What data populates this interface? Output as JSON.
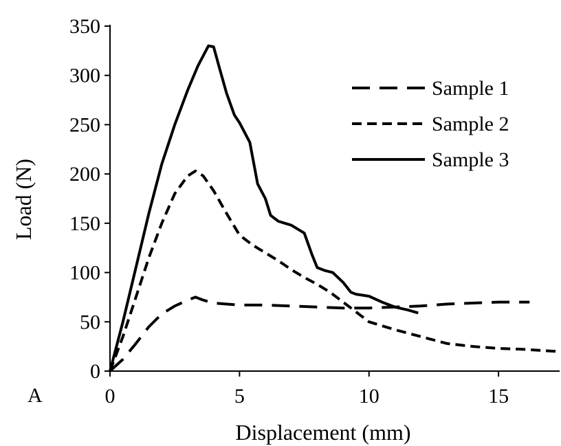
{
  "chart_data": {
    "type": "line",
    "panel_label": "A",
    "xlabel": "Displacement (mm)",
    "ylabel": "Load (N)",
    "xlim": [
      0,
      17.2
    ],
    "ylim": [
      0,
      350
    ],
    "xticks": [
      0,
      5,
      10,
      15
    ],
    "yticks": [
      0,
      50,
      100,
      150,
      200,
      250,
      300,
      350
    ],
    "grid": false,
    "legend_position": "top-right",
    "series": [
      {
        "name": "Sample 1",
        "style": "long-dash",
        "color": "#000000",
        "x": [
          0,
          0.5,
          1.0,
          1.5,
          2.0,
          2.5,
          3.0,
          3.3,
          3.6,
          4.0,
          5.0,
          6.0,
          7.0,
          8.0,
          9.0,
          10.0,
          11.0,
          12.0,
          13.0,
          14.0,
          15.0,
          16.2
        ],
        "y": [
          0,
          12,
          28,
          45,
          58,
          66,
          72,
          75,
          72,
          69,
          67,
          67,
          66,
          65,
          64,
          64,
          65,
          66,
          68,
          69,
          70,
          70
        ]
      },
      {
        "name": "Sample 2",
        "style": "short-dash",
        "color": "#000000",
        "x": [
          0,
          0.5,
          1.0,
          1.5,
          2.0,
          2.5,
          3.0,
          3.3,
          3.6,
          4.0,
          4.5,
          5.0,
          5.5,
          6.0,
          6.5,
          7.0,
          7.5,
          8.0,
          8.5,
          9.0,
          9.5,
          10.0,
          11.0,
          12.0,
          13.0,
          14.0,
          15.0,
          16.0,
          17.2
        ],
        "y": [
          0,
          35,
          75,
          115,
          150,
          180,
          198,
          203,
          198,
          183,
          160,
          138,
          128,
          120,
          112,
          103,
          95,
          88,
          80,
          70,
          60,
          50,
          42,
          35,
          28,
          25,
          23,
          22,
          20
        ]
      },
      {
        "name": "Sample 3",
        "style": "solid",
        "color": "#000000",
        "x": [
          0,
          0.5,
          1.0,
          1.5,
          2.0,
          2.5,
          3.0,
          3.4,
          3.8,
          4.0,
          4.2,
          4.5,
          4.8,
          5.0,
          5.4,
          5.7,
          6.0,
          6.2,
          6.5,
          7.0,
          7.5,
          7.8,
          8.0,
          8.3,
          8.6,
          9.0,
          9.3,
          9.5,
          10.0,
          10.5,
          11.0,
          11.5,
          11.9
        ],
        "y": [
          0,
          50,
          105,
          160,
          210,
          250,
          285,
          310,
          330,
          329,
          310,
          282,
          260,
          252,
          232,
          190,
          175,
          158,
          152,
          148,
          140,
          118,
          105,
          102,
          100,
          90,
          80,
          78,
          76,
          70,
          65,
          62,
          59
        ]
      }
    ]
  }
}
